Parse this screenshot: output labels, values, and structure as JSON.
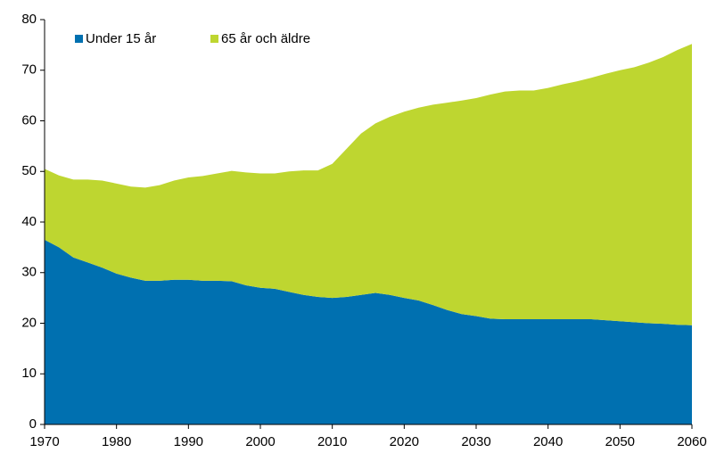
{
  "chart_data": {
    "type": "stacked_area",
    "x": [
      1970,
      1972,
      1974,
      1976,
      1978,
      1980,
      1982,
      1984,
      1986,
      1988,
      1990,
      1992,
      1994,
      1996,
      1998,
      2000,
      2002,
      2004,
      2006,
      2008,
      2010,
      2012,
      2014,
      2016,
      2018,
      2020,
      2022,
      2024,
      2026,
      2028,
      2030,
      2032,
      2034,
      2036,
      2038,
      2040,
      2042,
      2044,
      2046,
      2048,
      2050,
      2052,
      2054,
      2056,
      2058,
      2060
    ],
    "series": [
      {
        "name": "Under 15 år",
        "color": "#0070b0",
        "values": [
          36.5,
          35,
          33,
          32,
          31,
          29.8,
          29,
          28.4,
          28.4,
          28.6,
          28.6,
          28.4,
          28.4,
          28.3,
          27.5,
          27,
          26.8,
          26.2,
          25.6,
          25.2,
          25,
          25.2,
          25.6,
          26,
          25.6,
          25,
          24.5,
          23.6,
          22.6,
          21.8,
          21.4,
          20.9,
          20.8,
          20.8,
          20.8,
          20.8,
          20.8,
          20.8,
          20.8,
          20.6,
          20.4,
          20.2,
          20,
          19.9,
          19.7,
          19.6
        ]
      },
      {
        "name": "65 år och äldre",
        "color": "#bed630",
        "values": [
          14,
          14.2,
          15.4,
          16.4,
          17.2,
          17.8,
          18,
          18.4,
          18.9,
          19.6,
          20.2,
          20.7,
          21.2,
          21.8,
          22.3,
          22.6,
          22.8,
          23.8,
          24.6,
          25,
          26.5,
          29.3,
          31.9,
          33.5,
          35.2,
          36.8,
          38.1,
          39.6,
          41,
          42.2,
          43.1,
          44.3,
          45,
          45.2,
          45.2,
          45.7,
          46.4,
          47,
          47.7,
          48.7,
          49.6,
          50.4,
          51.5,
          52.7,
          54.3,
          55.6
        ]
      }
    ],
    "xlim": [
      1970,
      2060
    ],
    "xticks": [
      1970,
      1980,
      1990,
      2000,
      2010,
      2020,
      2030,
      2040,
      2050,
      2060
    ],
    "ylim": [
      0,
      80
    ],
    "yticks": [
      0,
      10,
      20,
      30,
      40,
      50,
      60,
      70,
      80
    ],
    "legend": "top-left"
  }
}
